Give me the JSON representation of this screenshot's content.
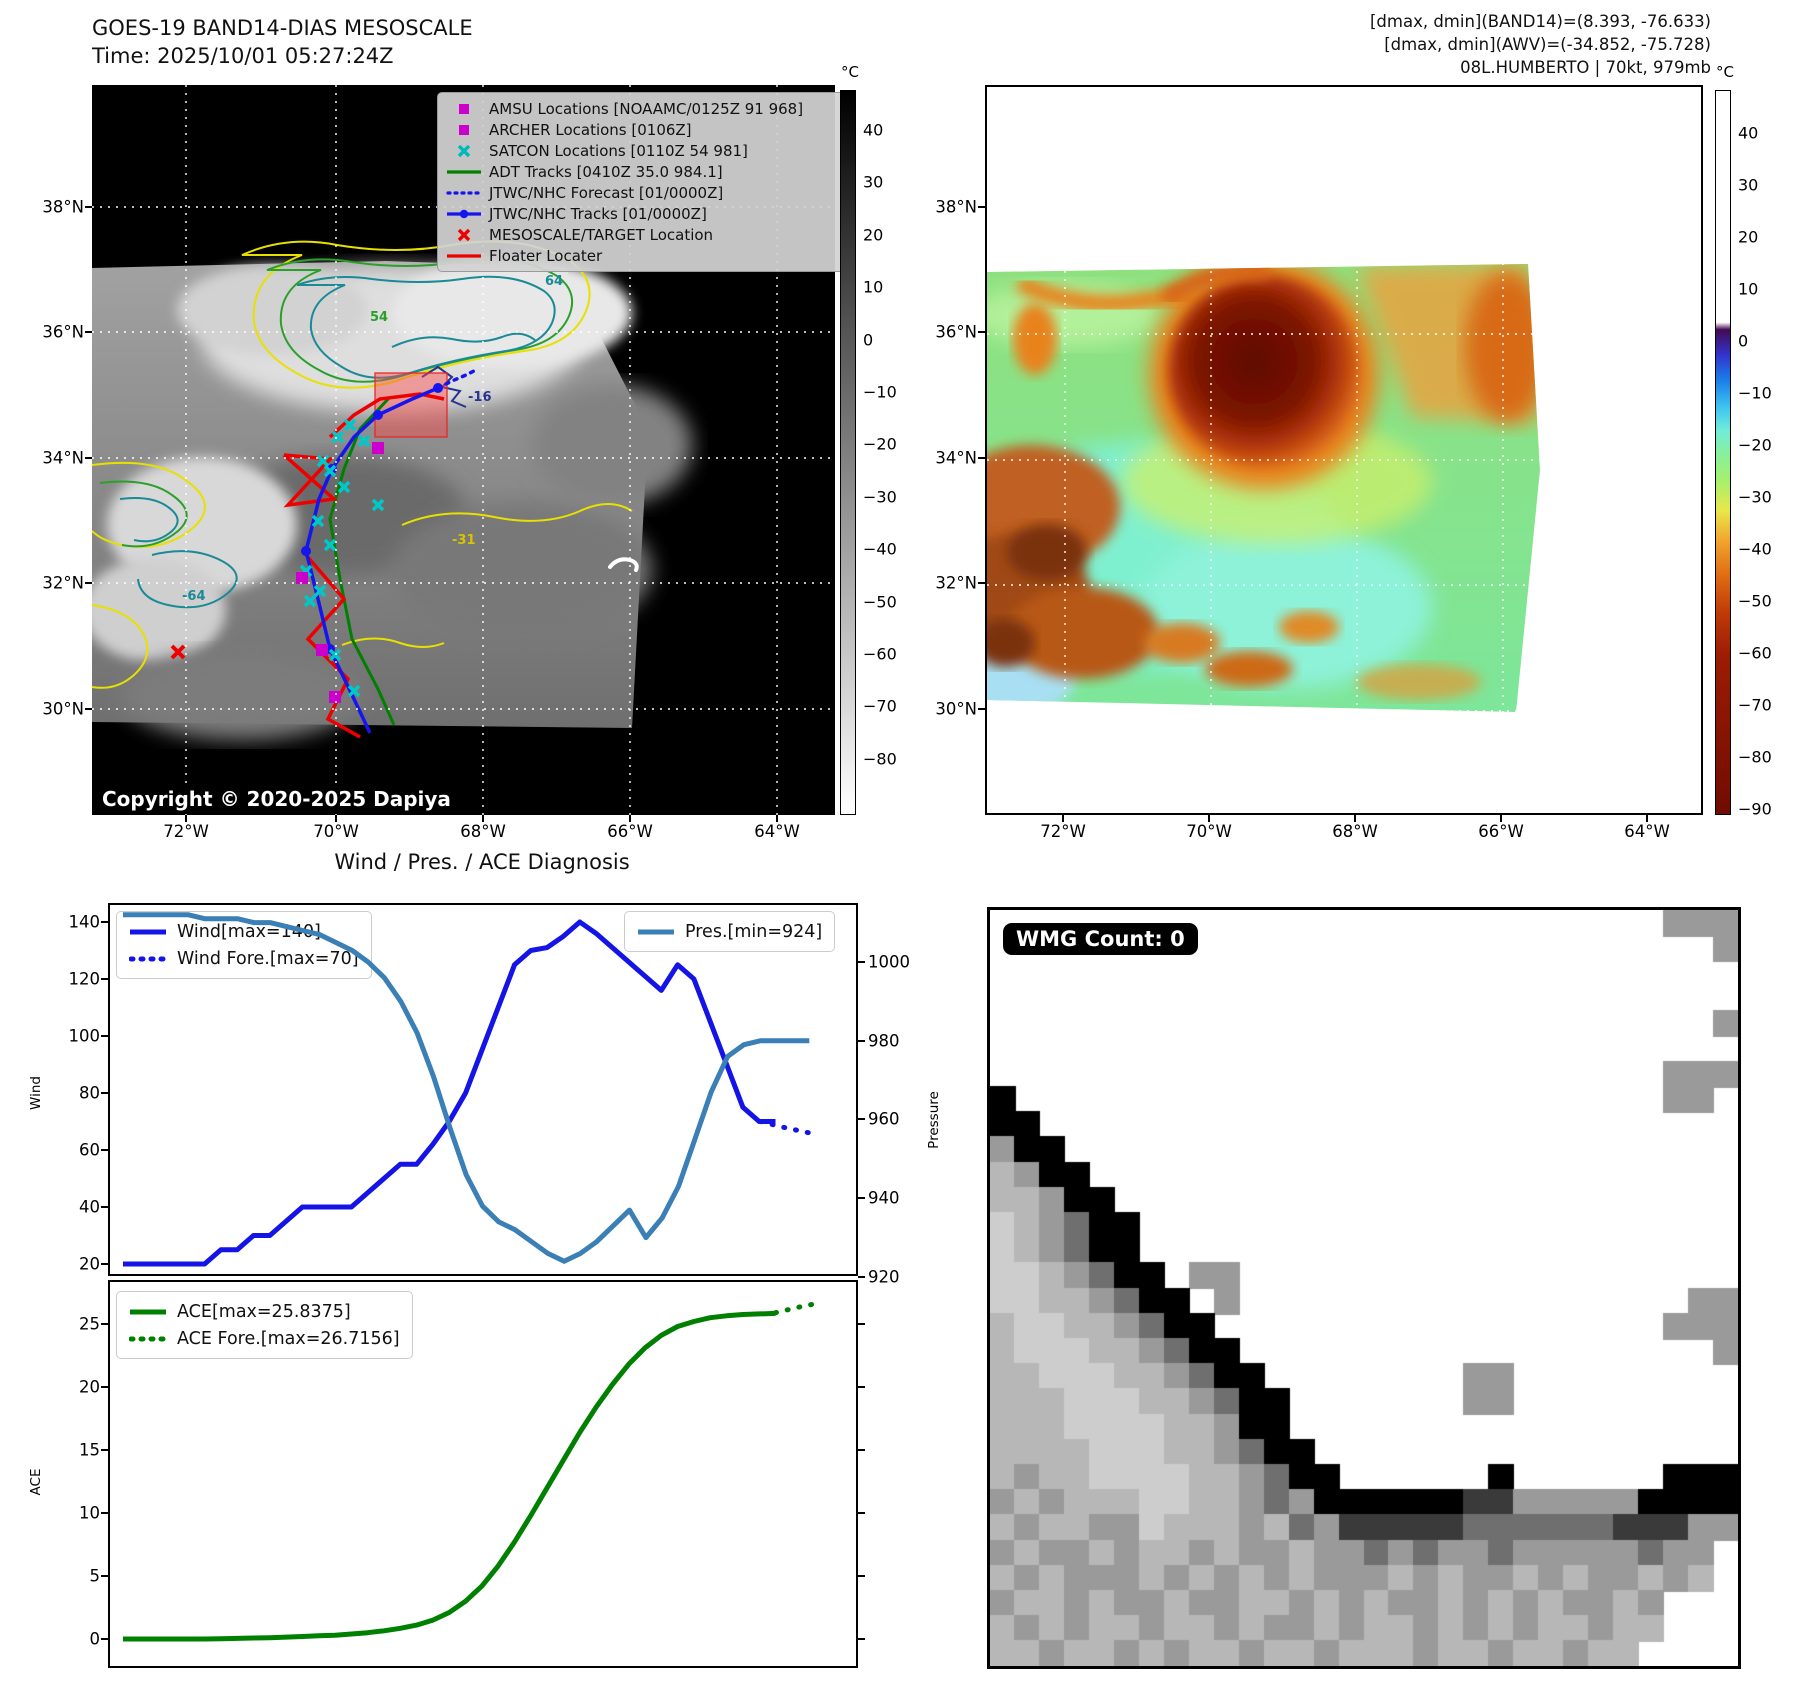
{
  "header": {
    "title": "GOES-19 BAND14-DIAS MESOSCALE",
    "time": "Time: 2025/10/01 05:27:24Z",
    "info_line1": "[dmax, dmin](BAND14)=(8.393, -76.633)",
    "info_line2": "[dmax, dmin](AWV)=(-34.852, -75.728)",
    "info_line3": "08L.HUMBERTO | 70kt, 979mb"
  },
  "band14_map": {
    "legend": [
      {
        "label": "AMSU Locations [NOAAMC/0125Z 91 968]",
        "symbol": "square",
        "color": "#cc00cc"
      },
      {
        "label": "ARCHER Locations [0106Z]",
        "symbol": "square",
        "color": "#cc00cc"
      },
      {
        "label": "SATCON Locations [0110Z 54 981]",
        "symbol": "x",
        "color": "#00b8b8"
      },
      {
        "label": "ADT Tracks [0410Z 35.0 984.1]",
        "symbol": "line",
        "color": "#008000"
      },
      {
        "label": "JTWC/NHC Forecast [01/0000Z]",
        "symbol": "dotted",
        "color": "#1515ee"
      },
      {
        "label": "JTWC/NHC Tracks [01/0000Z]",
        "symbol": "line-dot",
        "color": "#1515ee"
      },
      {
        "label": "MESOSCALE/TARGET Location",
        "symbol": "x",
        "color": "#ee0000"
      },
      {
        "label": "Floater Locater",
        "symbol": "line",
        "color": "#ee0000"
      }
    ],
    "copyright": "Copyright © 2020-2025 Dapiya",
    "x_ticks": [
      "72°W",
      "70°W",
      "68°W",
      "66°W",
      "64°W"
    ],
    "y_ticks": [
      "38°N",
      "36°N",
      "34°N",
      "32°N",
      "30°N"
    ],
    "colorbar": {
      "unit": "°C",
      "ticks": [
        "40",
        "30",
        "20",
        "10",
        "0",
        "−10",
        "−20",
        "−30",
        "−40",
        "−50",
        "−60",
        "−70",
        "−80"
      ]
    },
    "contour_labels": [
      {
        "text": "64",
        "color": "#1a8a96"
      },
      {
        "text": "54",
        "color": "#2aa02a"
      },
      {
        "text": "-16",
        "color": "#24348f"
      },
      {
        "text": "-31",
        "color": "#d8c400"
      },
      {
        "text": "-64",
        "color": "#1a8a96"
      }
    ]
  },
  "awv_map": {
    "x_ticks": [
      "72°W",
      "70°W",
      "68°W",
      "66°W",
      "64°W"
    ],
    "y_ticks": [
      "38°N",
      "36°N",
      "34°N",
      "32°N",
      "30°N"
    ],
    "colorbar": {
      "unit": "°C",
      "ticks": [
        "40",
        "30",
        "20",
        "10",
        "0",
        "−10",
        "−20",
        "−30",
        "−40",
        "−50",
        "−60",
        "−70",
        "−80",
        "−90"
      ]
    }
  },
  "diagnosis": {
    "title": "Wind / Pres. / ACE Diagnosis",
    "wind_ylabel": "Wind",
    "pressure_ylabel": "Pressure",
    "ace_ylabel": "ACE",
    "wind_yticks": [
      "140",
      "120",
      "100",
      "80",
      "60",
      "40",
      "20"
    ],
    "pressure_yticks": [
      "1000",
      "980",
      "960",
      "940",
      "920"
    ],
    "ace_yticks": [
      "25",
      "20",
      "15",
      "10",
      "5",
      "0"
    ],
    "legend_wind": "Wind[max=140]",
    "legend_wind_fore": "Wind Fore.[max=70]",
    "legend_pres": "Pres.[min=924]",
    "legend_ace": "ACE[max=25.8375]",
    "legend_ace_fore": "ACE Fore.[max=26.7156]"
  },
  "wmg": {
    "badge": "WMG Count: 0",
    "palette": {
      ".": "#ffffff",
      "k": "#000000",
      "D": "#3a3a3a",
      "d": "#6f6f6f",
      "m": "#9a9a9a",
      "l": "#b7b7b7",
      "L": "#cdcdcd"
    },
    "grid": [
      "...........................mmm",
      ".............................m",
      "..............................",
      "..............................",
      ".............................m",
      "..............................",
      "...........................mmm",
      "k..........................mm.",
      "kk............................",
      "mkk...........................",
      "lmkk..........................",
      "llmkk.........................",
      "Llmdkk........................",
      "Llmdkk........................",
      "LLlmdkk.mm....................",
      "LLllmdkk.m..................mm",
      "lLLllmdkk..................mmm",
      "lLLLllmdkk...................m",
      "llLLLllmdkk........mm.........",
      "lllLLLllmdkk.......mm.........",
      "lllLLLLllmkk..................",
      "llllLLLllmdkk.................",
      "lmllLLLLllmdkk......k......kkk",
      "mlmlllLLllmdmkkkkkkDDmmmmmkkkk",
      "lmllmmLlllmldmDDDDDddddddDDDmm",
      "mlmmlmllmlmmlmmdmdmmdmmmmmdmm.",
      "lmlmmmlmlmlmlmmmlmlmmlmlmmlml.",
      "mllmlmmlmmllmlmlmmlmlmlmmlm...",
      "lmlmllmllmlmmlmllmlmlmllmll...",
      "llmllmlmllmllmlllmllmllmll...."
    ]
  },
  "chart_data": [
    {
      "type": "line",
      "title": "Wind / Pres. / ACE Diagnosis (upper)",
      "ylabel": "Wind",
      "y2label": "Pressure",
      "ylim": [
        20,
        140
      ],
      "y2lim": [
        920,
        1000
      ],
      "grid": false,
      "series": [
        {
          "name": "Wind[max=140]",
          "axis": "wind",
          "style": "solid",
          "color": "#1414e6",
          "t0": 0.02,
          "t1": 0.89,
          "v": [
            20,
            20,
            20,
            20,
            20,
            20,
            25,
            25,
            30,
            30,
            35,
            40,
            40,
            40,
            40,
            45,
            50,
            55,
            55,
            62,
            70,
            80,
            95,
            110,
            125,
            130,
            131,
            135,
            140,
            136,
            131,
            126,
            121,
            116,
            125,
            120,
            105,
            90,
            75,
            70,
            70
          ]
        },
        {
          "name": "Wind Fore.[max=70]",
          "axis": "wind",
          "style": "dotted",
          "color": "#1414e6",
          "t": [
            0.87,
            0.9,
            0.935
          ],
          "v": [
            70,
            68,
            66
          ]
        },
        {
          "name": "Pres.[min=924]",
          "axis": "pres",
          "style": "solid",
          "color": "#3a7fb5",
          "t0": 0.02,
          "t1": 0.935,
          "v": [
            1012,
            1012,
            1012,
            1012,
            1012,
            1011,
            1011,
            1011,
            1010,
            1010,
            1009,
            1008,
            1007,
            1005,
            1003,
            1000,
            996,
            990,
            982,
            971,
            958,
            946,
            938,
            934,
            932,
            929,
            926,
            924,
            926,
            929,
            933,
            937,
            930,
            935,
            943,
            955,
            967,
            976,
            979,
            980,
            980,
            980,
            980
          ]
        }
      ]
    },
    {
      "type": "line",
      "title": "Wind / Pres. / ACE Diagnosis (lower)",
      "ylabel": "ACE",
      "ylim": [
        0,
        25
      ],
      "grid": false,
      "series": [
        {
          "name": "ACE[max=25.8375]",
          "axis": "ace",
          "style": "solid",
          "color": "#008000",
          "t0": 0.02,
          "t1": 0.89,
          "v": [
            0,
            0,
            0,
            0,
            0,
            0,
            0.02,
            0.05,
            0.08,
            0.1,
            0.15,
            0.2,
            0.25,
            0.3,
            0.4,
            0.5,
            0.65,
            0.85,
            1.1,
            1.5,
            2.1,
            3,
            4.2,
            5.8,
            7.7,
            9.8,
            12,
            14.2,
            16.4,
            18.4,
            20.2,
            21.8,
            23.1,
            24.1,
            24.8,
            25.2,
            25.5,
            25.65,
            25.75,
            25.8,
            25.8375
          ]
        },
        {
          "name": "ACE Fore.[max=26.7156]",
          "axis": "ace",
          "style": "dotted",
          "color": "#008000",
          "t": [
            0.89,
            0.922,
            0.952
          ],
          "v": [
            25.9,
            26.35,
            26.7156
          ]
        }
      ]
    }
  ]
}
